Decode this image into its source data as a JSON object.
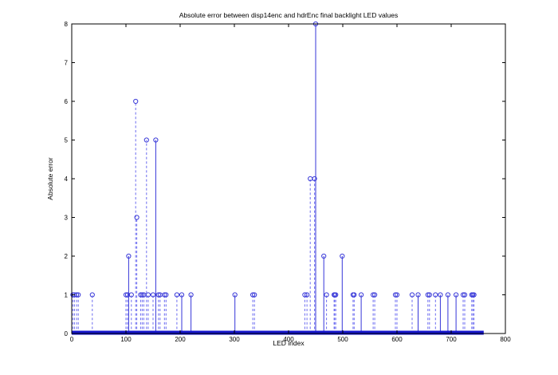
{
  "chart": {
    "title": "Absolute error between disp14enc and hdrEnc final backlight LED values",
    "xlabel": "LED index",
    "ylabel": "Absolute error"
  },
  "chart_data": {
    "type": "stem",
    "title": "Absolute error between disp14enc and hdrEnc final backlight LED values",
    "xlabel": "LED index",
    "ylabel": "Absolute error",
    "xlim": [
      0,
      800
    ],
    "ylim": [
      0,
      8
    ],
    "xticks": [
      0,
      100,
      200,
      300,
      400,
      500,
      600,
      700,
      800
    ],
    "yticks": [
      0,
      1,
      2,
      3,
      4,
      5,
      6,
      7,
      8
    ],
    "grid": false,
    "legend": null,
    "marker": "circle-hollow",
    "line_style": "dashed",
    "baseline_value": 0,
    "baseline_range": [
      0,
      760
    ],
    "colors": {
      "stem_dashed": "#6b6bf0",
      "stem_solid": "#3535d8",
      "marker": "#3a3ad8",
      "baseline": "#1414cc",
      "axis": "#000000",
      "text": "#000000"
    },
    "points": [
      {
        "x": 2,
        "y": 1
      },
      {
        "x": 5,
        "y": 1
      },
      {
        "x": 9,
        "y": 1
      },
      {
        "x": 12,
        "y": 1
      },
      {
        "x": 38,
        "y": 1
      },
      {
        "x": 100,
        "y": 1
      },
      {
        "x": 103,
        "y": 1
      },
      {
        "x": 105,
        "y": 2,
        "solid": true
      },
      {
        "x": 110,
        "y": 1
      },
      {
        "x": 118,
        "y": 6
      },
      {
        "x": 120,
        "y": 3
      },
      {
        "x": 127,
        "y": 1
      },
      {
        "x": 130,
        "y": 1
      },
      {
        "x": 133,
        "y": 1
      },
      {
        "x": 138,
        "y": 5
      },
      {
        "x": 141,
        "y": 1
      },
      {
        "x": 150,
        "y": 1
      },
      {
        "x": 155,
        "y": 5,
        "solid": true
      },
      {
        "x": 160,
        "y": 1
      },
      {
        "x": 163,
        "y": 1
      },
      {
        "x": 171,
        "y": 1
      },
      {
        "x": 174,
        "y": 1
      },
      {
        "x": 194,
        "y": 1
      },
      {
        "x": 203,
        "y": 1,
        "solid": true
      },
      {
        "x": 220,
        "y": 1,
        "solid": true
      },
      {
        "x": 301,
        "y": 1,
        "solid": true
      },
      {
        "x": 334,
        "y": 1
      },
      {
        "x": 337,
        "y": 1
      },
      {
        "x": 430,
        "y": 1
      },
      {
        "x": 434,
        "y": 1
      },
      {
        "x": 440,
        "y": 4
      },
      {
        "x": 448,
        "y": 4
      },
      {
        "x": 450,
        "y": 8,
        "solid": true
      },
      {
        "x": 465,
        "y": 2,
        "solid": true
      },
      {
        "x": 470,
        "y": 1
      },
      {
        "x": 484,
        "y": 1
      },
      {
        "x": 485,
        "y": 1
      },
      {
        "x": 487,
        "y": 1
      },
      {
        "x": 499,
        "y": 2,
        "solid": true
      },
      {
        "x": 519,
        "y": 1
      },
      {
        "x": 521,
        "y": 1
      },
      {
        "x": 534,
        "y": 1,
        "solid": true
      },
      {
        "x": 556,
        "y": 1
      },
      {
        "x": 559,
        "y": 1
      },
      {
        "x": 597,
        "y": 1
      },
      {
        "x": 600,
        "y": 1
      },
      {
        "x": 628,
        "y": 1
      },
      {
        "x": 639,
        "y": 1,
        "solid": true
      },
      {
        "x": 657,
        "y": 1
      },
      {
        "x": 660,
        "y": 1
      },
      {
        "x": 671,
        "y": 1
      },
      {
        "x": 680,
        "y": 1,
        "solid": true
      },
      {
        "x": 694,
        "y": 1,
        "solid": true
      },
      {
        "x": 709,
        "y": 1,
        "solid": true
      },
      {
        "x": 722,
        "y": 1
      },
      {
        "x": 725,
        "y": 1
      },
      {
        "x": 738,
        "y": 1
      },
      {
        "x": 740,
        "y": 1
      },
      {
        "x": 742,
        "y": 1
      }
    ]
  }
}
